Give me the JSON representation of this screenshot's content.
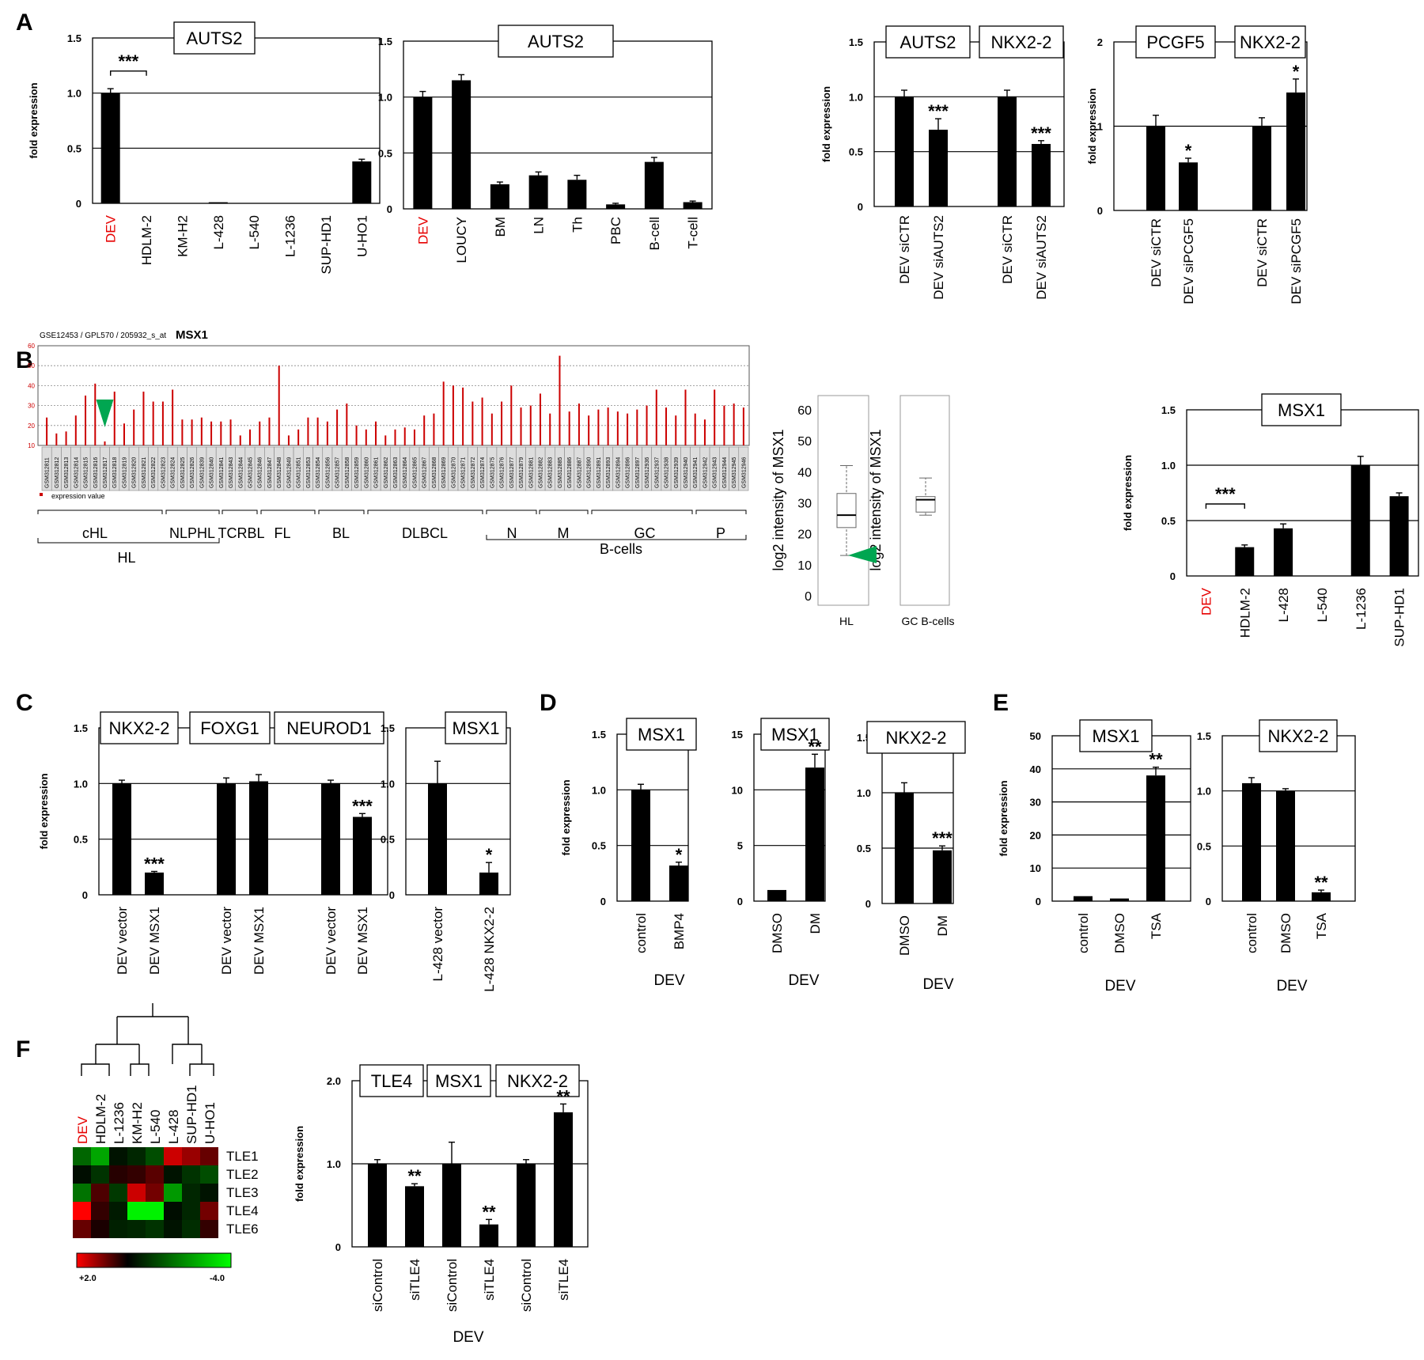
{
  "figure": {
    "panel_labels": [
      "A",
      "B",
      "C",
      "D",
      "E",
      "F"
    ],
    "colors": {
      "bar": "#000000",
      "highlight": "#e60000",
      "micro_bar": "#cc0000",
      "arrow": "#00a651",
      "heat_high": "#ff0000",
      "heat_low": "#00ff00"
    }
  },
  "chart_data": [
    {
      "id": "A1",
      "type": "bar",
      "ylabel": "fold expression",
      "ylim": [
        0,
        1.5
      ],
      "yticks": [
        "0",
        "0.5",
        "1.0",
        "1.5"
      ],
      "titles": [
        "AUTS2"
      ],
      "categories": [
        "DEV",
        "HDLM-2",
        "KM-H2",
        "L-428",
        "L-540",
        "L-1236",
        "SUP-HD1",
        "U-HO1"
      ],
      "values": [
        1.0,
        0,
        0,
        0.01,
        0,
        0,
        0,
        0.38
      ],
      "errors": [
        0.04,
        0,
        0,
        0,
        0,
        0,
        0,
        0.02
      ],
      "highlight": [
        "DEV"
      ],
      "significance": [
        {
          "text": "***",
          "bracket": true
        }
      ]
    },
    {
      "id": "A2",
      "type": "bar",
      "ylabel": "",
      "ylim": [
        0,
        1.5
      ],
      "yticks": [
        "0",
        "0.5",
        "1.0",
        "1.5"
      ],
      "titles": [
        "AUTS2"
      ],
      "categories": [
        "DEV",
        "LOUCY",
        "BM",
        "LN",
        "Th",
        "PBC",
        "B-cell",
        "T-cell"
      ],
      "values": [
        1.0,
        1.15,
        0.22,
        0.3,
        0.26,
        0.04,
        0.42,
        0.06
      ],
      "errors": [
        0.05,
        0.05,
        0.02,
        0.03,
        0.04,
        0.01,
        0.04,
        0.01
      ],
      "highlight": [
        "DEV"
      ]
    },
    {
      "id": "A3",
      "type": "bar",
      "ylabel": "fold expression",
      "ylim": [
        0,
        1.5
      ],
      "yticks": [
        "0",
        "0.5",
        "1.0",
        "1.5"
      ],
      "titles": [
        "AUTS2",
        "NKX2-2"
      ],
      "categories": [
        "DEV siCTR",
        "DEV siAUTS2",
        "DEV siCTR",
        "DEV siAUTS2"
      ],
      "values": [
        1.0,
        0.7,
        1.0,
        0.57
      ],
      "errors": [
        0.06,
        0.1,
        0.06,
        0.03
      ],
      "significance": [
        {
          "text": "***"
        },
        {
          "text": "***"
        }
      ]
    },
    {
      "id": "A4",
      "type": "bar",
      "ylabel": "fold expression",
      "ylim": [
        0,
        2
      ],
      "yticks": [
        "0",
        "1",
        "2"
      ],
      "titles": [
        "PCGF5",
        "NKX2-2"
      ],
      "categories": [
        "DEV siCTR",
        "DEV siPCGF5",
        "DEV siCTR",
        "DEV siPCGF5"
      ],
      "values": [
        1.0,
        0.57,
        1.0,
        1.4
      ],
      "errors": [
        0.13,
        0.05,
        0.1,
        0.16
      ],
      "significance": [
        {
          "text": "*"
        },
        {
          "text": "*"
        }
      ]
    },
    {
      "id": "B1",
      "type": "bar",
      "header": "GSE12453 / GPL570 / 205932_s_at",
      "title": "MSX1",
      "legend": "expression value",
      "ylim": [
        10,
        60
      ],
      "yticks": [
        "10",
        "20",
        "30",
        "40",
        "50",
        "60"
      ],
      "samples": [
        "GSM312811",
        "GSM312812",
        "GSM312813",
        "GSM312814",
        "GSM312815",
        "GSM312816",
        "GSM312817",
        "GSM312818",
        "GSM312819",
        "GSM312820",
        "GSM312821",
        "GSM312822",
        "GSM312823",
        "GSM312824",
        "GSM312825",
        "GSM312826",
        "GSM312839",
        "GSM312840",
        "GSM312841",
        "GSM312843",
        "GSM312844",
        "GSM312845",
        "GSM312846",
        "GSM312847",
        "GSM312848",
        "GSM312849",
        "GSM312851",
        "GSM312853",
        "GSM312854",
        "GSM312856",
        "GSM312857",
        "GSM312858",
        "GSM312859",
        "GSM312860",
        "GSM312861",
        "GSM312862",
        "GSM312863",
        "GSM312864",
        "GSM312865",
        "GSM312867",
        "GSM312868",
        "GSM312869",
        "GSM312870",
        "GSM312871",
        "GSM312872",
        "GSM312874",
        "GSM312875",
        "GSM312876",
        "GSM312877",
        "GSM312879",
        "GSM312881",
        "GSM312882",
        "GSM312883",
        "GSM312885",
        "GSM312886",
        "GSM312887",
        "GSM312890",
        "GSM312891",
        "GSM312893",
        "GSM312894",
        "GSM312896",
        "GSM312897",
        "GSM312936",
        "GSM312937",
        "GSM312938",
        "GSM312939",
        "GSM312940",
        "GSM312941",
        "GSM312942",
        "GSM312943",
        "GSM312944",
        "GSM312945",
        "GSM312946"
      ],
      "values": [
        24,
        16,
        17,
        25,
        35,
        41,
        12,
        37,
        21,
        28,
        37,
        32,
        32,
        38,
        23,
        23,
        24,
        22,
        22,
        23,
        15,
        18,
        22,
        24,
        50,
        15,
        18,
        24,
        24,
        22,
        28,
        31,
        20,
        18,
        22,
        15,
        18,
        19,
        18,
        25,
        26,
        42,
        40,
        39,
        32,
        34,
        26,
        32,
        40,
        29,
        30,
        36,
        26,
        55,
        27,
        31,
        25,
        28,
        29,
        27,
        26,
        28,
        30,
        38,
        29,
        25,
        38,
        26,
        23,
        38,
        30,
        31,
        29
      ],
      "arrow_sample": "GSM312817",
      "groups": [
        "cHL",
        "NLPHL",
        "TCRBL",
        "FL",
        "BL",
        "DLBCL",
        "N",
        "M",
        "GC",
        "P"
      ],
      "supergroups": [
        "HL",
        "B-cells"
      ]
    },
    {
      "id": "B2",
      "type": "box",
      "ylabel": "log2 intensity of MSX1",
      "ylim": [
        0,
        60
      ],
      "yticks": [
        "0",
        "10",
        "20",
        "30",
        "40",
        "50",
        "60"
      ],
      "groups": [
        {
          "name": "HL",
          "whisker_low": 13,
          "q1": 22,
          "median": 26,
          "q3": 33,
          "whisker_high": 42
        },
        {
          "name": "GC B-cells",
          "whisker_low": 26,
          "q1": 27,
          "median": 31,
          "q3": 32,
          "whisker_high": 38
        }
      ]
    },
    {
      "id": "B3",
      "type": "bar",
      "ylabel": "fold expression",
      "ylim": [
        0,
        1.5
      ],
      "yticks": [
        "0",
        "0.5",
        "1.0",
        "1.5"
      ],
      "titles": [
        "MSX1"
      ],
      "categories": [
        "DEV",
        "HDLM-2",
        "L-428",
        "L-540",
        "L-1236",
        "SUP-HD1"
      ],
      "values": [
        0,
        0.26,
        0.43,
        0,
        1.0,
        0.72
      ],
      "errors": [
        0,
        0.02,
        0.04,
        0,
        0.08,
        0.03
      ],
      "highlight": [
        "DEV"
      ],
      "significance": [
        {
          "text": "***",
          "bracket": true
        }
      ]
    },
    {
      "id": "C1",
      "type": "bar",
      "ylabel": "fold expression",
      "ylim": [
        0,
        1.5
      ],
      "yticks": [
        "0",
        "0.5",
        "1.0",
        "1.5"
      ],
      "titles": [
        "NKX2-2",
        "FOXG1",
        "NEUROD1"
      ],
      "categories": [
        "DEV vector",
        "DEV MSX1",
        "DEV vector",
        "DEV MSX1",
        "DEV vector",
        "DEV MSX1"
      ],
      "values": [
        1.0,
        0.2,
        1.0,
        1.02,
        1.0,
        0.7
      ],
      "errors": [
        0.03,
        0.01,
        0.05,
        0.06,
        0.03,
        0.03
      ],
      "significance": [
        {
          "text": "***"
        },
        {
          "text": "***"
        }
      ]
    },
    {
      "id": "C2",
      "type": "bar",
      "ylabel": "",
      "ylim": [
        0,
        1.5
      ],
      "yticks": [
        "0",
        "0.5",
        "1.0",
        "1.5"
      ],
      "titles": [
        "MSX1"
      ],
      "categories": [
        "L-428 vector",
        "L-428 NKX2-2"
      ],
      "values": [
        1.0,
        0.2
      ],
      "errors": [
        0.2,
        0.09
      ],
      "significance": [
        {
          "text": "*"
        }
      ]
    },
    {
      "id": "D1",
      "type": "bar",
      "ylabel": "fold expression",
      "ylim": [
        0,
        1.5
      ],
      "yticks": [
        "0",
        "0.5",
        "1.0",
        "1.5"
      ],
      "titles": [
        "MSX1"
      ],
      "categories": [
        "control",
        "BMP4"
      ],
      "values": [
        1.0,
        0.32
      ],
      "errors": [
        0.05,
        0.03
      ],
      "xlabel": "DEV",
      "significance": [
        {
          "text": "*"
        }
      ]
    },
    {
      "id": "D2",
      "type": "bar",
      "ylabel": "",
      "ylim": [
        0,
        15
      ],
      "yticks": [
        "0",
        "5",
        "10",
        "15"
      ],
      "titles": [
        "MSX1"
      ],
      "categories": [
        "DMSO",
        "DM"
      ],
      "values": [
        1.0,
        12.0
      ],
      "errors": [
        0,
        1.2
      ],
      "xlabel": "DEV",
      "significance": [
        {
          "text": "**"
        }
      ]
    },
    {
      "id": "D3",
      "type": "bar",
      "ylabel": "",
      "ylim": [
        0,
        1.5
      ],
      "yticks": [
        "0",
        "0.5",
        "1.0",
        "1.5"
      ],
      "titles": [
        "NKX2-2"
      ],
      "categories": [
        "DMSO",
        "DM"
      ],
      "values": [
        1.0,
        0.48
      ],
      "errors": [
        0.09,
        0.04
      ],
      "xlabel": "DEV",
      "significance": [
        {
          "text": "***"
        }
      ]
    },
    {
      "id": "E1",
      "type": "bar",
      "ylabel": "fold expression",
      "ylim": [
        0,
        50
      ],
      "yticks": [
        "0",
        "10",
        "20",
        "30",
        "40",
        "50"
      ],
      "titles": [
        "MSX1"
      ],
      "categories": [
        "control",
        "DMSO",
        "TSA"
      ],
      "values": [
        1.5,
        0.8,
        38.0
      ],
      "errors": [
        0,
        0,
        2.5
      ],
      "xlabel": "DEV",
      "significance": [
        {
          "text": "**"
        }
      ]
    },
    {
      "id": "E2",
      "type": "bar",
      "ylabel": "",
      "ylim": [
        0,
        1.5
      ],
      "yticks": [
        "0",
        "0.5",
        "1.0",
        "1.5"
      ],
      "titles": [
        "NKX2-2"
      ],
      "categories": [
        "control",
        "DMSO",
        "TSA"
      ],
      "values": [
        1.07,
        1.0,
        0.08
      ],
      "errors": [
        0.05,
        0.02,
        0.02
      ],
      "xlabel": "DEV",
      "significance": [
        {
          "text": "**"
        }
      ]
    },
    {
      "id": "F1",
      "type": "heatmap",
      "columns": [
        "DEV",
        "HDLM-2",
        "L-1236",
        "KM-H2",
        "L-540",
        "L-428",
        "SUP-HD1",
        "U-HO1"
      ],
      "rows": [
        "TLE1",
        "TLE2",
        "TLE3",
        "TLE4",
        "TLE6"
      ],
      "values": [
        [
          -1.6,
          -2.6,
          -0.3,
          -0.6,
          -1.2,
          1.6,
          1.2,
          0.8
        ],
        [
          -0.2,
          -0.8,
          0.3,
          0.4,
          0.7,
          -0.3,
          -0.8,
          -1.2
        ],
        [
          -1.8,
          0.6,
          -0.9,
          1.6,
          0.9,
          -2.4,
          -0.6,
          -0.3
        ],
        [
          2.0,
          0.4,
          -0.4,
          -3.8,
          -3.8,
          -0.2,
          -0.6,
          0.9
        ],
        [
          0.8,
          0.2,
          -0.5,
          -0.6,
          -0.8,
          -0.3,
          -0.7,
          0.4
        ]
      ],
      "scale": {
        "high": "+2.0",
        "low": "-4.0"
      },
      "highlight": [
        "DEV"
      ]
    },
    {
      "id": "F2",
      "type": "bar",
      "ylabel": "fold expression",
      "ylim": [
        0,
        2
      ],
      "yticks": [
        "0",
        "1.0",
        "2.0"
      ],
      "titles": [
        "TLE4",
        "MSX1",
        "NKX2-2"
      ],
      "categories": [
        "siControl",
        "siTLE4",
        "siControl",
        "siTLE4",
        "siControl",
        "siTLE4"
      ],
      "values": [
        1.0,
        0.73,
        1.0,
        0.27,
        1.0,
        1.62
      ],
      "errors": [
        0.05,
        0.03,
        0.26,
        0.06,
        0.05,
        0.1
      ],
      "xlabel": "DEV",
      "significance": [
        {
          "text": "**"
        },
        {
          "text": "**"
        },
        {
          "text": "**"
        }
      ]
    }
  ]
}
